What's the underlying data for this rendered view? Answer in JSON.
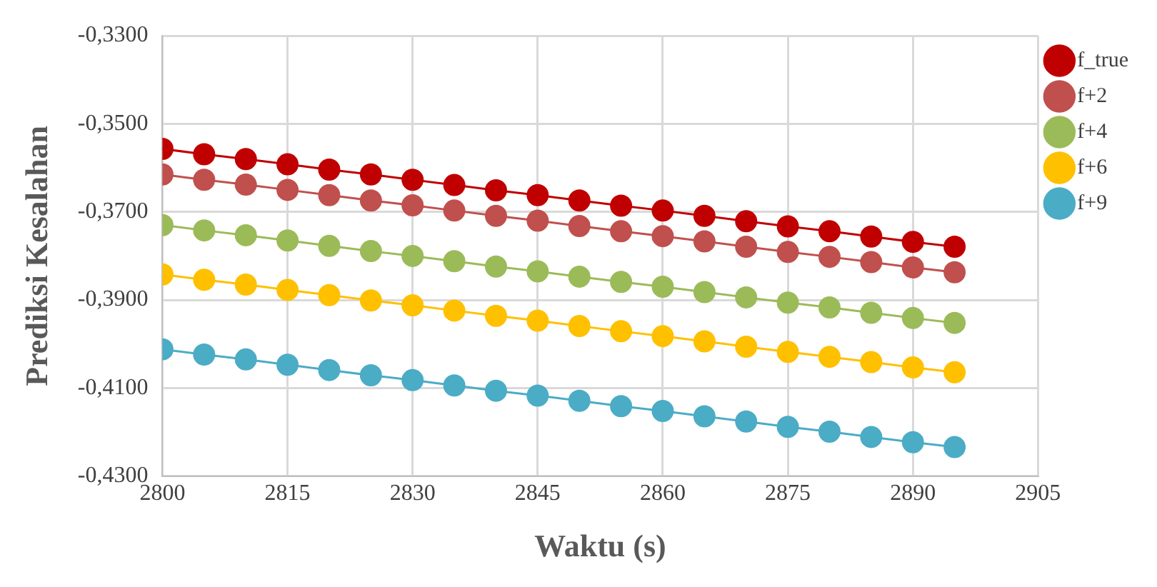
{
  "chart_data": {
    "type": "line",
    "xlabel": "Waktu (s)",
    "ylabel": "Prediksi Kesalahan",
    "x": [
      2800,
      2805,
      2810,
      2815,
      2820,
      2825,
      2830,
      2835,
      2840,
      2845,
      2850,
      2855,
      2860,
      2865,
      2870,
      2875,
      2880,
      2885,
      2890,
      2895
    ],
    "series": [
      {
        "name": "f_true",
        "color": "#c00000",
        "values": [
          -0.3557,
          -0.3569,
          -0.358,
          -0.3592,
          -0.3604,
          -0.3615,
          -0.3627,
          -0.3639,
          -0.3651,
          -0.3662,
          -0.3674,
          -0.3686,
          -0.3697,
          -0.3709,
          -0.3721,
          -0.3733,
          -0.3744,
          -0.3756,
          -0.3768,
          -0.3779
        ]
      },
      {
        "name": "f+2",
        "color": "#c0504d",
        "values": [
          -0.3615,
          -0.3627,
          -0.3638,
          -0.365,
          -0.3662,
          -0.3674,
          -0.3685,
          -0.3697,
          -0.3709,
          -0.372,
          -0.3732,
          -0.3744,
          -0.3755,
          -0.3767,
          -0.3779,
          -0.3791,
          -0.3802,
          -0.3814,
          -0.3826,
          -0.3837
        ]
      },
      {
        "name": "f+4",
        "color": "#9bbb59",
        "values": [
          -0.373,
          -0.3742,
          -0.3753,
          -0.3765,
          -0.3777,
          -0.3789,
          -0.38,
          -0.3812,
          -0.3824,
          -0.3835,
          -0.3847,
          -0.3859,
          -0.387,
          -0.3882,
          -0.3894,
          -0.3906,
          -0.3917,
          -0.3929,
          -0.3941,
          -0.3952
        ]
      },
      {
        "name": "f+6",
        "color": "#ffc000",
        "values": [
          -0.3842,
          -0.3854,
          -0.3865,
          -0.3877,
          -0.3889,
          -0.3901,
          -0.3912,
          -0.3924,
          -0.3936,
          -0.3947,
          -0.3959,
          -0.3971,
          -0.3982,
          -0.3994,
          -0.4006,
          -0.4018,
          -0.4029,
          -0.4041,
          -0.4053,
          -0.4064
        ]
      },
      {
        "name": "f+9",
        "color": "#4bacc6",
        "values": [
          -0.4012,
          -0.4024,
          -0.4035,
          -0.4047,
          -0.4059,
          -0.4071,
          -0.4082,
          -0.4094,
          -0.4106,
          -0.4117,
          -0.4129,
          -0.4141,
          -0.4152,
          -0.4164,
          -0.4176,
          -0.4188,
          -0.4199,
          -0.4211,
          -0.4223,
          -0.4234
        ]
      }
    ],
    "xlim": [
      2800,
      2905
    ],
    "xticks": [
      2800,
      2815,
      2830,
      2845,
      2860,
      2875,
      2890,
      2905
    ],
    "ylim": [
      -0.43,
      -0.33
    ],
    "yticks": [
      {
        "value": -0.43,
        "label": "-0,4300"
      },
      {
        "value": -0.41,
        "label": "-0,4100"
      },
      {
        "value": -0.39,
        "label": "-0,3900"
      },
      {
        "value": -0.37,
        "label": "-0,3700"
      },
      {
        "value": -0.35,
        "label": "-0,3500"
      },
      {
        "value": -0.33,
        "label": "-0,3300"
      }
    ],
    "grid": true,
    "legend": "right",
    "marker": "circle",
    "line_style": "solid"
  }
}
